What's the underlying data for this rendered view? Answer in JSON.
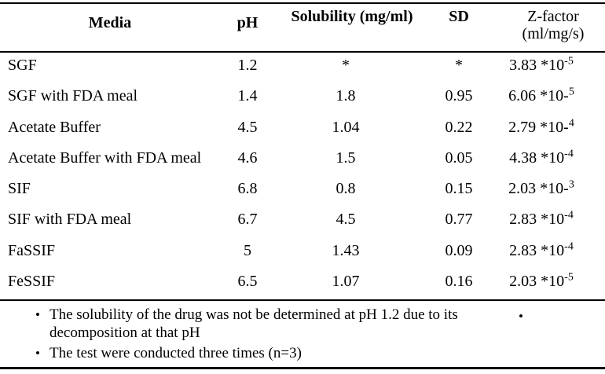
{
  "table": {
    "columns": {
      "media": {
        "label": "Media"
      },
      "ph": {
        "label": "pH"
      },
      "solubility": {
        "label": "Solubility (mg/ml)"
      },
      "sd": {
        "label": "SD"
      },
      "z": {
        "label_line1": "Z-factor",
        "label_line2": "(ml/mg/s)"
      }
    },
    "rows": [
      {
        "media": "SGF",
        "ph": "1.2",
        "solubility": "*",
        "sd": "*",
        "z_base": "3.83 *10",
        "z_sup": "-5"
      },
      {
        "media": "SGF with FDA meal",
        "ph": "1.4",
        "solubility": "1.8",
        "sd": "0.95",
        "z_base": "6.06 *10-",
        "z_sup": "5"
      },
      {
        "media": "Acetate Buffer",
        "ph": "4.5",
        "solubility": "1.04",
        "sd": "0.22",
        "z_base": "2.79 *10-",
        "z_sup": "4"
      },
      {
        "media": "Acetate Buffer with FDA meal",
        "ph": "4.6",
        "solubility": "1.5",
        "sd": "0.05",
        "z_base": "4.38 *10",
        "z_sup": "-4"
      },
      {
        "media": "SIF",
        "ph": "6.8",
        "solubility": "0.8",
        "sd": "0.15",
        "z_base": "2.03 *10-",
        "z_sup": "3"
      },
      {
        "media": "SIF with FDA meal",
        "ph": "6.7",
        "solubility": "4.5",
        "sd": "0.77",
        "z_base": "2.83 *10",
        "z_sup": "-4"
      },
      {
        "media": "FaSSIF",
        "ph": "5",
        "solubility": "1.43",
        "sd": "0.09",
        "z_base": "2.83 *10",
        "z_sup": "-4"
      },
      {
        "media": "FeSSIF",
        "ph": "6.5",
        "solubility": "1.07",
        "sd": "0.16",
        "z_base": "2.03 *10",
        "z_sup": "-5"
      }
    ]
  },
  "footnotes": {
    "bullet_glyph": "•",
    "items": [
      "The solubility of the drug was not be determined at pH 1.2 due to its decomposition at that pH",
      "The test were conducted three times (n=3)"
    ],
    "right_bullet": "•"
  },
  "colors": {
    "text": "#000000",
    "background": "#ffffff",
    "rule": "#000000"
  }
}
